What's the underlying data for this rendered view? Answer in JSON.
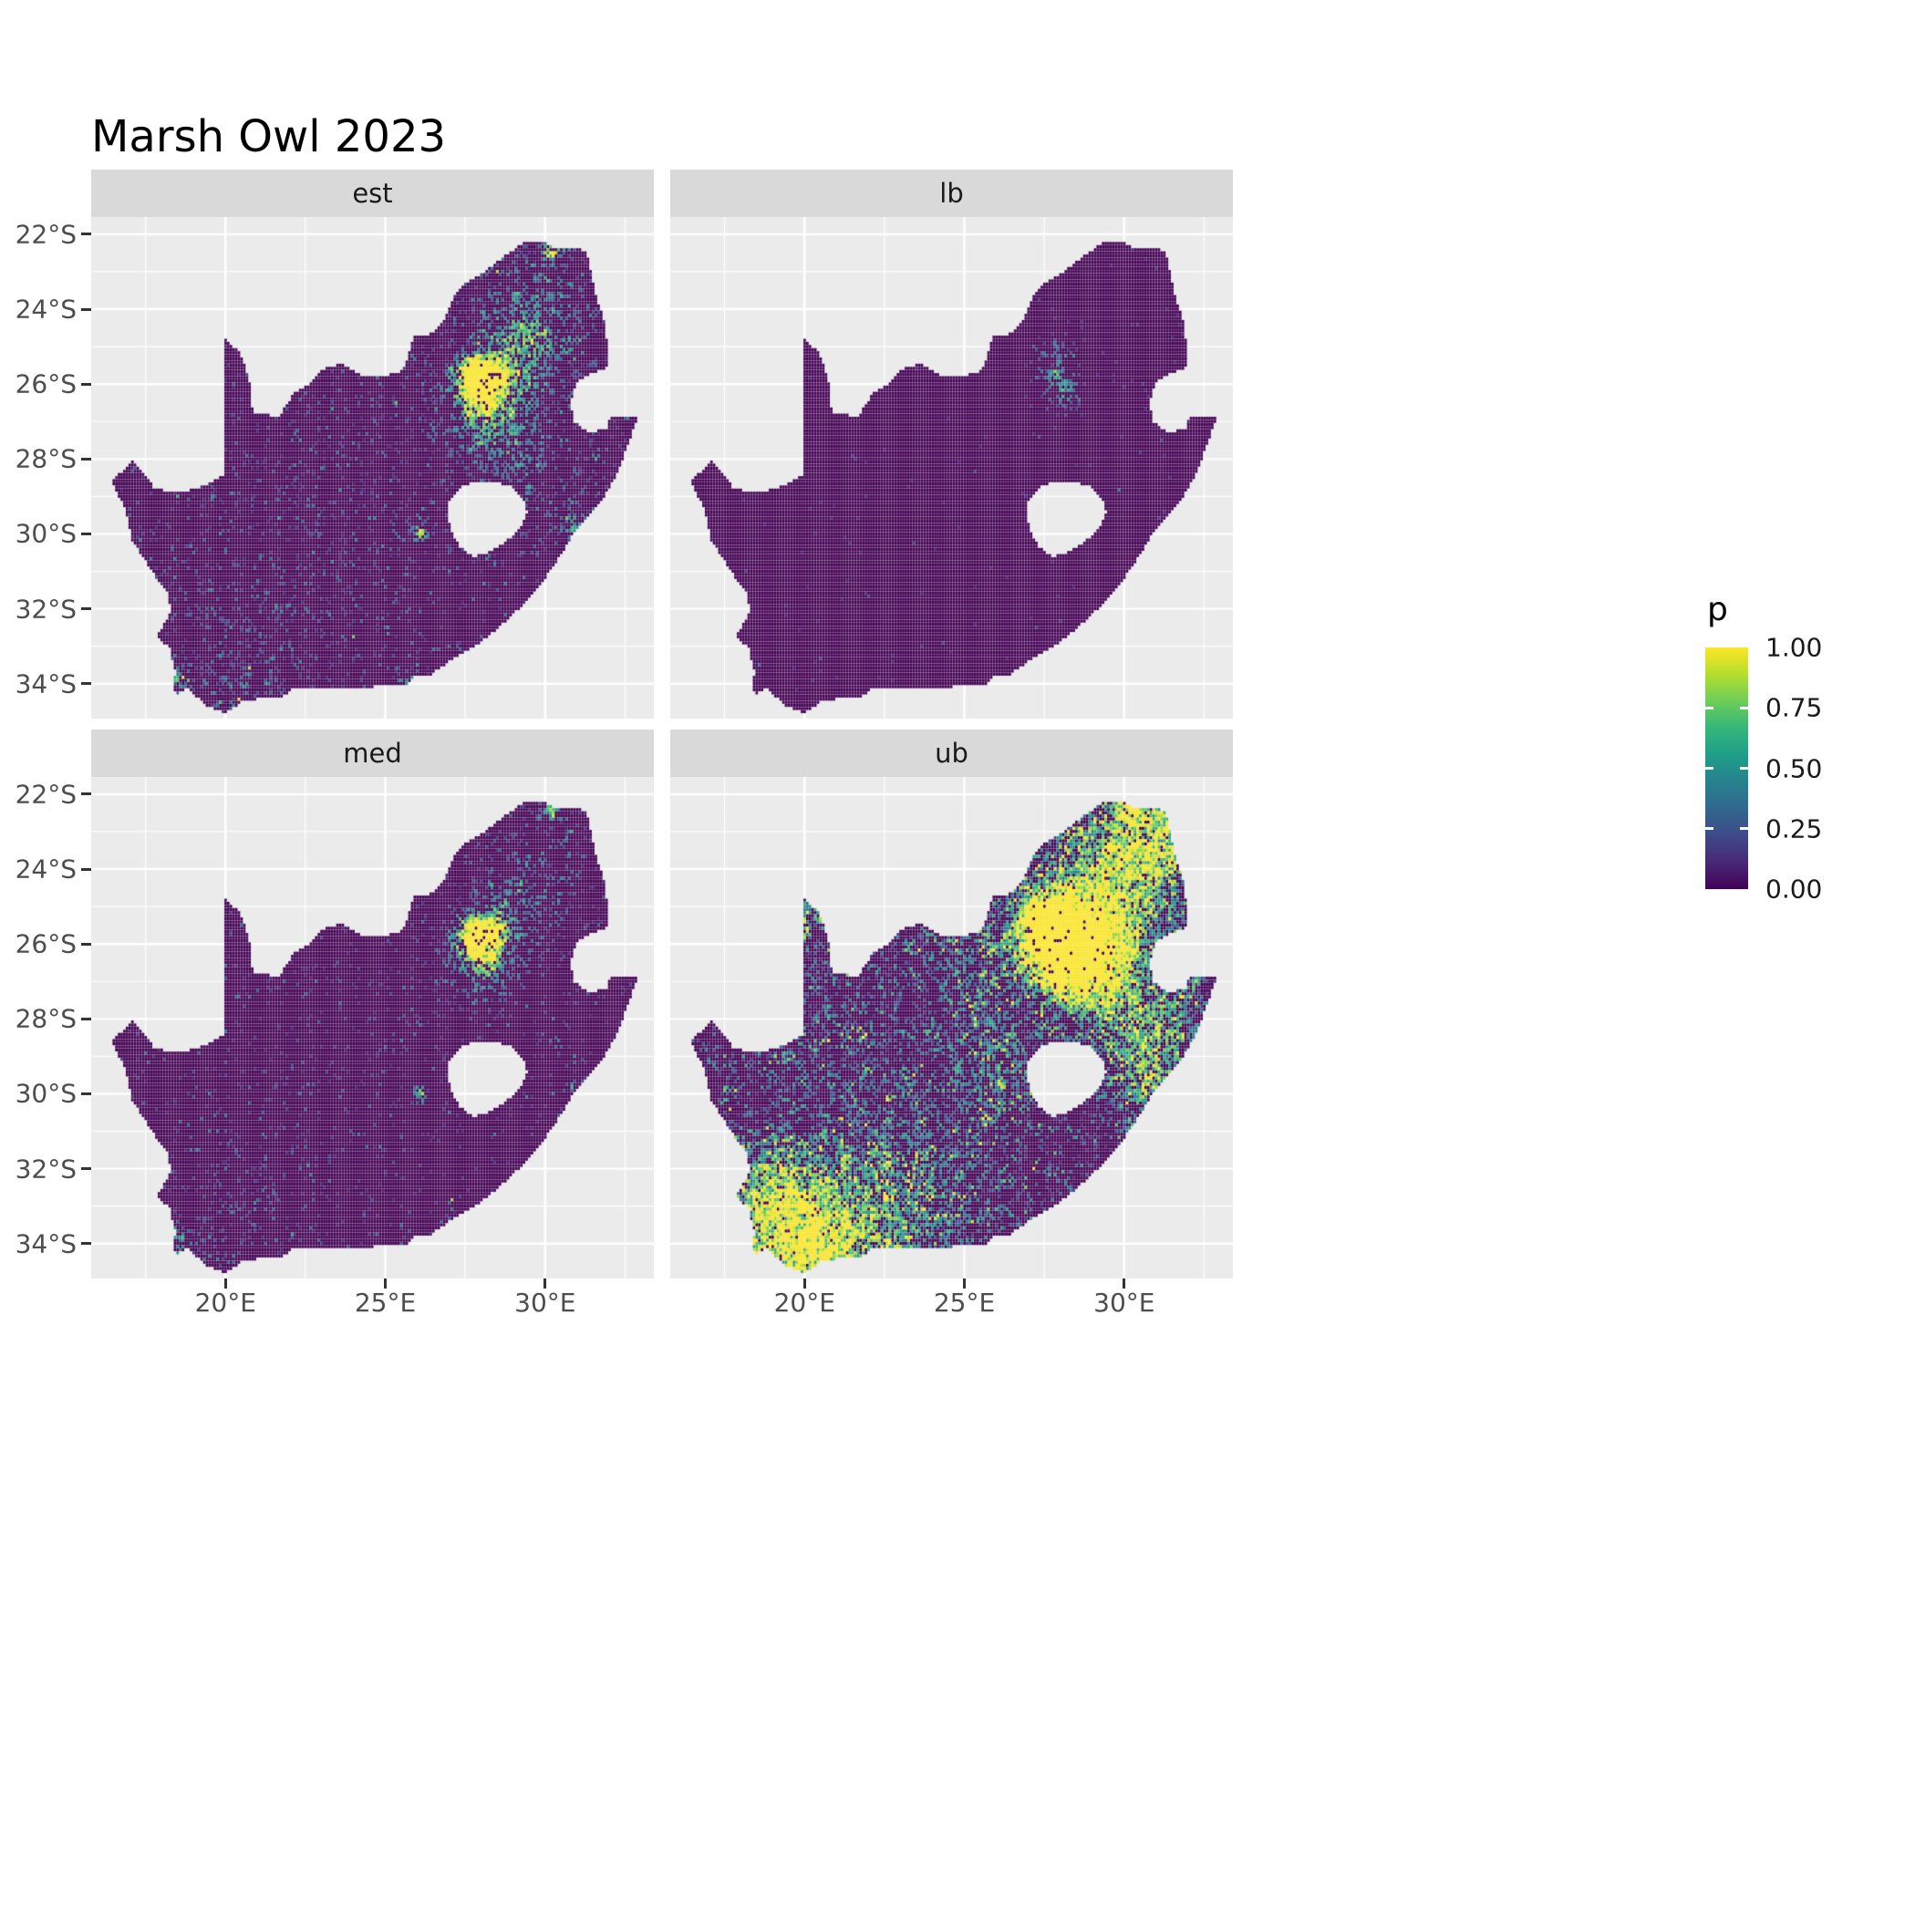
{
  "title": "Marsh Owl 2023",
  "chart_data": {
    "type": "heatmap",
    "title": "Marsh Owl 2023",
    "region": "South Africa",
    "x_ticks": [
      "20°E",
      "25°E",
      "30°E"
    ],
    "x_tick_lons": [
      20,
      25,
      30
    ],
    "minor_lons": [
      17.5,
      22.5,
      27.5,
      32.5
    ],
    "y_ticks": [
      "22°S",
      "24°S",
      "26°S",
      "28°S",
      "30°S",
      "32°S",
      "34°S"
    ],
    "y_tick_lats": [
      -22,
      -24,
      -26,
      -28,
      -30,
      -32,
      -34
    ],
    "minor_lats": [
      -23,
      -25,
      -27,
      -29,
      -31,
      -33
    ],
    "lon_range": [
      15.8,
      33.4
    ],
    "lat_range": [
      -34.93,
      -21.54
    ],
    "legend": {
      "title": "p",
      "ticks": [
        "1.00",
        "0.75",
        "0.50",
        "0.25",
        "0.00"
      ],
      "tick_values": [
        1.0,
        0.75,
        0.5,
        0.25,
        0.0
      ]
    },
    "colors": {
      "viridis": [
        "#440154",
        "#482878",
        "#3E4A89",
        "#31688E",
        "#26828E",
        "#1F9E89",
        "#35B779",
        "#6DCD59",
        "#B4DE2C",
        "#FDE725"
      ],
      "panel_bg": "#EBEBEB",
      "strip_bg": "#D9D9D9",
      "grid": "#FFFFFF",
      "axis_text": "#4D4D4D"
    },
    "facets": [
      {
        "label": "est",
        "seed": 3,
        "speckle": 0.05,
        "spark": 0.5,
        "hotspots": [
          [
            28.0,
            -26.05,
            0.45,
            1.25
          ],
          [
            27.8,
            -25.75,
            0.3,
            0.9
          ],
          [
            28.35,
            -25.65,
            0.25,
            0.75
          ],
          [
            28.15,
            -26.45,
            0.9,
            0.5
          ],
          [
            29.05,
            -25.3,
            0.7,
            0.35
          ],
          [
            29.6,
            -24.6,
            0.8,
            0.3
          ],
          [
            30.2,
            -22.45,
            0.18,
            0.9
          ],
          [
            26.1,
            -30.0,
            0.15,
            1.0
          ],
          [
            30.95,
            -29.85,
            0.25,
            0.6
          ],
          [
            18.55,
            -33.9,
            0.3,
            0.55
          ],
          [
            25.6,
            -33.9,
            0.2,
            0.5
          ],
          [
            20.4,
            -33.6,
            2.0,
            0.16
          ],
          [
            29.8,
            -23.6,
            1.8,
            0.2
          ],
          [
            30.8,
            -28.8,
            1.6,
            0.14
          ],
          [
            24.0,
            -28.5,
            2.5,
            0.07
          ],
          [
            28.6,
            -27.6,
            0.8,
            0.25
          ]
        ]
      },
      {
        "label": "lb",
        "seed": 7,
        "speckle": 0.006,
        "spark": 0.28,
        "hotspots": [
          [
            28.0,
            -25.9,
            0.4,
            0.5
          ],
          [
            28.3,
            -26.4,
            0.25,
            0.35
          ],
          [
            27.9,
            -25.2,
            0.45,
            0.25
          ],
          [
            28.6,
            -29.4,
            0.3,
            0.12
          ]
        ]
      },
      {
        "label": "med",
        "seed": 11,
        "speckle": 0.032,
        "spark": 0.45,
        "hotspots": [
          [
            28.0,
            -26.0,
            0.45,
            1.05
          ],
          [
            27.8,
            -25.7,
            0.3,
            0.8
          ],
          [
            28.4,
            -25.6,
            0.25,
            0.6
          ],
          [
            28.1,
            -26.45,
            0.85,
            0.4
          ],
          [
            30.2,
            -22.45,
            0.15,
            0.85
          ],
          [
            26.1,
            -30.0,
            0.13,
            0.95
          ],
          [
            30.95,
            -29.85,
            0.2,
            0.5
          ],
          [
            18.55,
            -33.9,
            0.25,
            0.45
          ],
          [
            29.8,
            -23.7,
            1.8,
            0.16
          ],
          [
            20.4,
            -33.7,
            2.0,
            0.12
          ],
          [
            24.0,
            -28.5,
            2.5,
            0.05
          ],
          [
            29.0,
            -25.0,
            0.7,
            0.3
          ]
        ]
      },
      {
        "label": "ub",
        "seed": 19,
        "speckle": 0.16,
        "spark": 0.85,
        "hotspots": [
          [
            28.0,
            -26.0,
            0.8,
            1.6
          ],
          [
            27.6,
            -25.5,
            0.6,
            1.1
          ],
          [
            28.8,
            -26.3,
            0.8,
            0.8
          ],
          [
            29.5,
            -25.0,
            1.2,
            0.6
          ],
          [
            30.0,
            -23.5,
            1.5,
            0.55
          ],
          [
            31.0,
            -28.0,
            1.2,
            0.5
          ],
          [
            30.8,
            -29.6,
            1.0,
            0.5
          ],
          [
            29.0,
            -27.0,
            1.0,
            0.45
          ],
          [
            19.5,
            -33.9,
            1.3,
            0.6
          ],
          [
            20.5,
            -34.2,
            1.5,
            0.5
          ],
          [
            22.5,
            -33.5,
            2.0,
            0.35
          ],
          [
            18.8,
            -32.5,
            1.0,
            0.4
          ],
          [
            26.0,
            -29.3,
            0.8,
            0.35
          ],
          [
            24.5,
            -31.5,
            2.5,
            0.18
          ],
          [
            31.5,
            -23.0,
            1.0,
            0.5
          ],
          [
            20.0,
            -28.5,
            2.0,
            0.15
          ],
          [
            25.5,
            -26.5,
            1.5,
            0.3
          ],
          [
            20.2,
            -25.2,
            0.5,
            0.45
          ],
          [
            30.2,
            -22.4,
            0.3,
            0.9
          ]
        ]
      }
    ],
    "map": {
      "outline": [
        [
          16.45,
          -28.6
        ],
        [
          16.8,
          -28.3
        ],
        [
          17.1,
          -28.05
        ],
        [
          17.4,
          -28.35
        ],
        [
          17.75,
          -28.75
        ],
        [
          18.25,
          -28.9
        ],
        [
          18.8,
          -28.85
        ],
        [
          19.35,
          -28.72
        ],
        [
          19.98,
          -28.42
        ],
        [
          19.98,
          -24.8
        ],
        [
          20.45,
          -25.15
        ],
        [
          20.65,
          -25.6
        ],
        [
          20.82,
          -26.15
        ],
        [
          20.85,
          -26.8
        ],
        [
          21.7,
          -26.85
        ],
        [
          22.15,
          -26.25
        ],
        [
          22.65,
          -26.0
        ],
        [
          23.05,
          -25.6
        ],
        [
          23.65,
          -25.45
        ],
        [
          24.25,
          -25.75
        ],
        [
          24.8,
          -25.82
        ],
        [
          25.4,
          -25.7
        ],
        [
          25.65,
          -25.45
        ],
        [
          25.9,
          -24.75
        ],
        [
          26.45,
          -24.65
        ],
        [
          26.85,
          -24.3
        ],
        [
          27.15,
          -23.65
        ],
        [
          27.6,
          -23.25
        ],
        [
          28.2,
          -22.95
        ],
        [
          28.95,
          -22.45
        ],
        [
          29.4,
          -22.2
        ],
        [
          29.95,
          -22.2
        ],
        [
          30.3,
          -22.35
        ],
        [
          31.1,
          -22.4
        ],
        [
          31.3,
          -22.45
        ],
        [
          31.55,
          -23.5
        ],
        [
          31.85,
          -24.3
        ],
        [
          31.97,
          -25.1
        ],
        [
          31.95,
          -25.55
        ],
        [
          31.35,
          -25.75
        ],
        [
          30.95,
          -26.0
        ],
        [
          30.8,
          -26.5
        ],
        [
          30.9,
          -27.0
        ],
        [
          31.35,
          -27.3
        ],
        [
          31.95,
          -27.2
        ],
        [
          32.05,
          -26.85
        ],
        [
          32.9,
          -26.86
        ],
        [
          32.6,
          -27.6
        ],
        [
          32.3,
          -28.35
        ],
        [
          31.85,
          -29.0
        ],
        [
          31.35,
          -29.55
        ],
        [
          30.9,
          -30.0
        ],
        [
          30.4,
          -30.7
        ],
        [
          29.9,
          -31.3
        ],
        [
          29.25,
          -31.95
        ],
        [
          28.5,
          -32.55
        ],
        [
          27.8,
          -33.0
        ],
        [
          27.1,
          -33.35
        ],
        [
          26.45,
          -33.75
        ],
        [
          25.95,
          -33.78
        ],
        [
          25.65,
          -34.05
        ],
        [
          25.0,
          -34.02
        ],
        [
          24.2,
          -34.15
        ],
        [
          23.4,
          -34.1
        ],
        [
          22.6,
          -34.15
        ],
        [
          22.15,
          -34.1
        ],
        [
          21.8,
          -34.35
        ],
        [
          21.1,
          -34.4
        ],
        [
          20.55,
          -34.45
        ],
        [
          20.0,
          -34.8
        ],
        [
          19.45,
          -34.6
        ],
        [
          19.1,
          -34.35
        ],
        [
          18.8,
          -34.1
        ],
        [
          18.45,
          -34.3
        ],
        [
          18.35,
          -33.95
        ],
        [
          18.45,
          -33.7
        ],
        [
          18.25,
          -33.05
        ],
        [
          17.85,
          -32.75
        ],
        [
          18.3,
          -32.1
        ],
        [
          18.2,
          -31.6
        ],
        [
          17.7,
          -31.0
        ],
        [
          17.1,
          -30.2
        ],
        [
          16.9,
          -29.4
        ]
      ],
      "hole": [
        [
          27.0,
          -29.15
        ],
        [
          27.35,
          -28.75
        ],
        [
          27.8,
          -28.6
        ],
        [
          28.35,
          -28.6
        ],
        [
          28.95,
          -28.75
        ],
        [
          29.3,
          -29.05
        ],
        [
          29.45,
          -29.4
        ],
        [
          29.25,
          -29.8
        ],
        [
          28.85,
          -30.15
        ],
        [
          28.25,
          -30.5
        ],
        [
          27.75,
          -30.6
        ],
        [
          27.35,
          -30.35
        ],
        [
          27.05,
          -29.9
        ],
        [
          26.95,
          -29.5
        ]
      ]
    }
  }
}
